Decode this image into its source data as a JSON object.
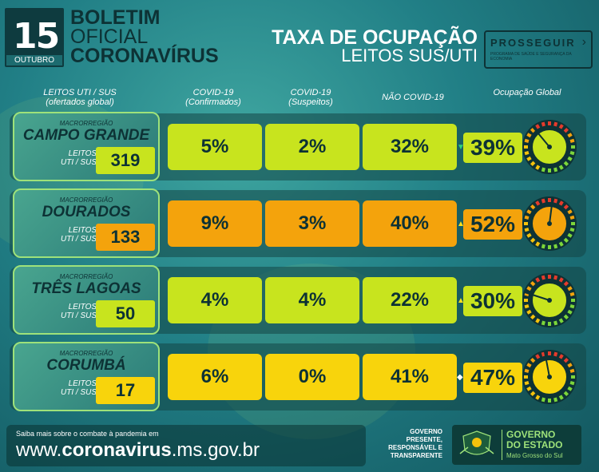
{
  "header": {
    "day": "15",
    "month": "OUTUBRO",
    "title_line1": "BOLETIM",
    "title_line2": "OFICIAL",
    "title_line3": "CORONAVÍRUS",
    "taxa_line1": "TAXA DE OCUPAÇÃO",
    "taxa_line2": "LEITOS SUS/UTI",
    "brand": "PROSSEGUIR",
    "brand_sub": "PROGRAMA DE SAÚDE E SEGURANÇA DA ECONOMIA"
  },
  "columns": {
    "leitos_l1": "LEITOS UTI / SUS",
    "leitos_l2": "(ofertados global)",
    "covid_conf_l1": "COVID-19",
    "covid_conf_l2": "(Confirmados)",
    "covid_susp_l1": "COVID-19",
    "covid_susp_l2": "(Suspeitos)",
    "nao_covid": "NÃO COVID-19",
    "ocupacao": "Ocupação Global"
  },
  "macro_label": "MACRORREGIÃO",
  "leitos_label_l1": "LEITOS",
  "leitos_label_l2": "UTI / SUS",
  "regions": [
    {
      "name": "CAMPO GRANDE",
      "leitos": "319",
      "confirmados": "5%",
      "suspeitos": "2%",
      "nao_covid": "32%",
      "ocupacao": "39%",
      "ocupacao_value": 39,
      "trend": "down",
      "color": "#c8e41e"
    },
    {
      "name": "DOURADOS",
      "leitos": "133",
      "confirmados": "9%",
      "suspeitos": "3%",
      "nao_covid": "40%",
      "ocupacao": "52%",
      "ocupacao_value": 52,
      "trend": "up",
      "color": "#f4a30c"
    },
    {
      "name": "TRÊS LAGOAS",
      "leitos": "50",
      "confirmados": "4%",
      "suspeitos": "4%",
      "nao_covid": "22%",
      "ocupacao": "30%",
      "ocupacao_value": 30,
      "trend": "up",
      "color": "#c8e41e"
    },
    {
      "name": "CORUMBÁ",
      "leitos": "17",
      "confirmados": "6%",
      "suspeitos": "0%",
      "nao_covid": "41%",
      "ocupacao": "47%",
      "ocupacao_value": 47,
      "trend": "flat",
      "color": "#f8d40c"
    }
  ],
  "footer": {
    "saiba": "Saiba mais sobre o combate à pandemia em",
    "url_prefix": "www.",
    "url_bold": "coronavirus",
    "url_suffix": ".ms.gov.br",
    "slogan_l1": "GOVERNO",
    "slogan_l2": "PRESENTE,",
    "slogan_l3": "RESPONSÁVEL E",
    "slogan_l4": "TRANSPARENTE",
    "gov_l1": "GOVERNO",
    "gov_l2": "DO ESTADO",
    "gov_l3": "Mato Grosso do Sul"
  }
}
